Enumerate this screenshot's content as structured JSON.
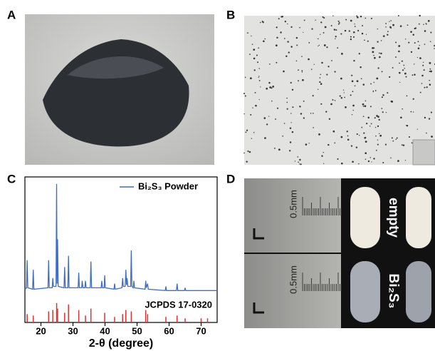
{
  "panels": {
    "A": {
      "label": "A"
    },
    "B": {
      "label": "B"
    },
    "C": {
      "label": "C"
    },
    "D": {
      "label": "D",
      "ruler_top": "0.5mm",
      "ruler_bottom": "0.5mm",
      "capsule_top": "empty",
      "capsule_bottom": "Bi₂S₃"
    }
  },
  "chart_data": {
    "type": "line",
    "x_label": "2-θ (degree)",
    "xlim": [
      15,
      75
    ],
    "xticks": [
      20,
      30,
      40,
      50,
      60,
      70
    ],
    "ylim": [
      0,
      105
    ],
    "legend": "upper right",
    "series": [
      {
        "name": "Bi₂S₃ Powder",
        "color": "#3d6fc4",
        "type": "line",
        "x": [
          15,
          15.5,
          15.7,
          15.9,
          17.4,
          17.6,
          17.8,
          22.2,
          22.4,
          22.6,
          23.5,
          23.7,
          23.9,
          24.7,
          24.9,
          25.05,
          25.2,
          25.4,
          27.2,
          27.4,
          27.6,
          28.4,
          28.6,
          28.8,
          31.6,
          31.8,
          32,
          32.7,
          32.9,
          33.1,
          33.7,
          33.9,
          34.1,
          35.4,
          35.6,
          35.8,
          38.8,
          39,
          39.2,
          39.7,
          39.9,
          40.1,
          42.8,
          43,
          43.2,
          45.3,
          45.5,
          45.7,
          46.3,
          46.5,
          46.7,
          46.9,
          47.1,
          48,
          48.2,
          48.4,
          48.8,
          49,
          49.2,
          52.5,
          52.7,
          52.9,
          53.3,
          53.5,
          58.8,
          59,
          59.2,
          62.3,
          62.5,
          62.7,
          64.8,
          65,
          65.2,
          75
        ],
        "values": [
          24,
          25,
          45,
          25,
          24,
          38,
          24,
          25,
          45,
          25,
          25,
          32,
          26,
          26,
          100,
          28,
          60,
          26,
          25,
          40,
          25,
          25,
          48,
          25,
          25,
          36,
          25,
          25,
          30,
          25,
          25,
          30,
          25,
          25,
          44,
          25,
          25,
          30,
          25,
          25,
          34,
          25,
          24,
          28,
          24,
          25,
          32,
          26,
          26,
          38,
          27,
          32,
          26,
          26,
          52,
          26,
          25,
          30,
          25,
          24,
          30,
          25,
          28,
          24,
          23,
          26,
          23,
          23,
          28,
          23,
          23,
          25,
          23,
          23
        ]
      },
      {
        "name": "JCPDS 17-0320",
        "color": "#e03030",
        "type": "stick",
        "x": [
          15.7,
          17.6,
          22.4,
          23.7,
          24.9,
          25.2,
          27.4,
          28.6,
          31.8,
          33.9,
          35.6,
          39.9,
          43,
          45.5,
          46.5,
          48.2,
          52.7,
          53.3,
          59,
          62.5,
          65,
          70,
          72
        ],
        "values": [
          6,
          5,
          8,
          9,
          14,
          10,
          7,
          13,
          9,
          5,
          10,
          7,
          4,
          6,
          9,
          8,
          9,
          6,
          4,
          5,
          3,
          3,
          3
        ]
      }
    ]
  }
}
